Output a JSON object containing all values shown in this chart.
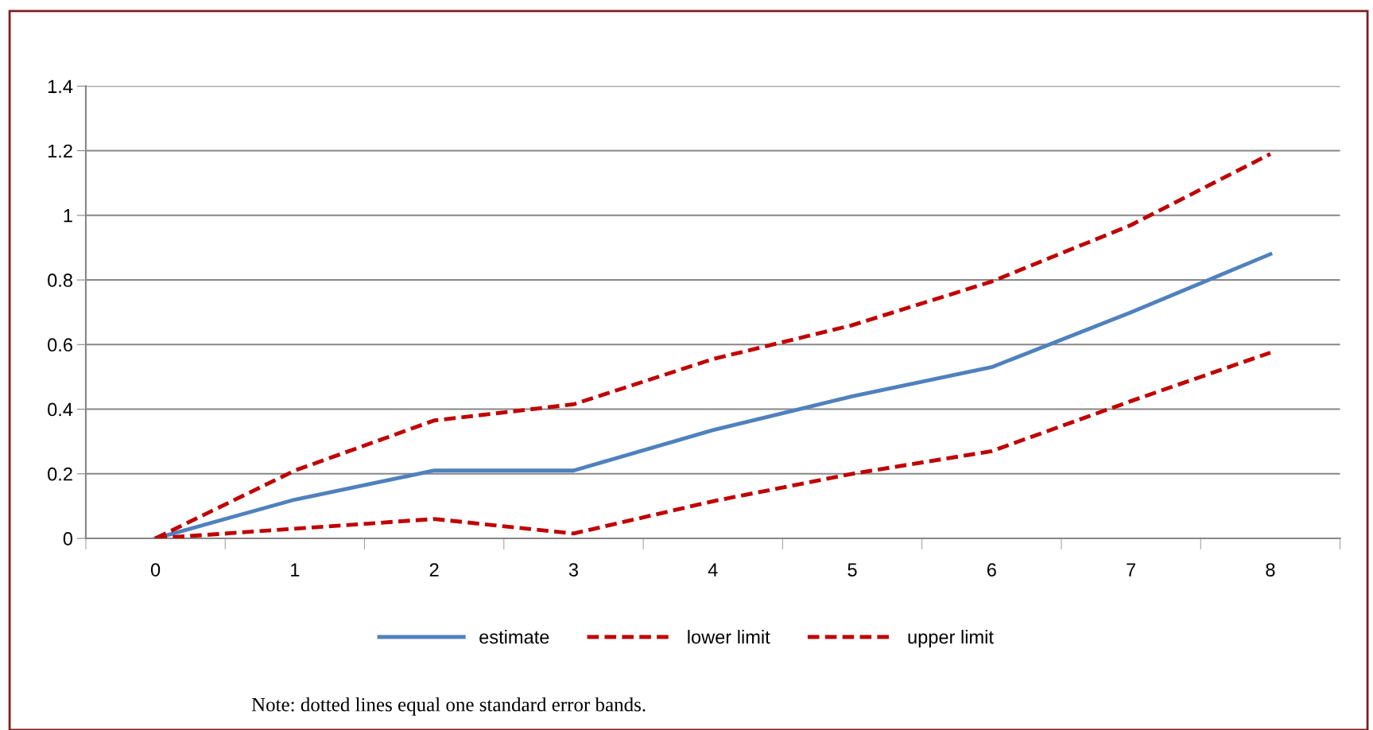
{
  "chart_data": {
    "type": "line",
    "categories": [
      "0",
      "1",
      "2",
      "3",
      "4",
      "5",
      "6",
      "7",
      "8"
    ],
    "series": [
      {
        "name": "estimate",
        "color": "#4f81bd",
        "line_style": "solid",
        "values": [
          0,
          0.12,
          0.21,
          0.21,
          0.335,
          0.44,
          0.53,
          0.7,
          0.88
        ]
      },
      {
        "name": "lower limit",
        "color": "#c00000",
        "line_style": "dashed",
        "values": [
          0,
          0.03,
          0.06,
          0.015,
          0.115,
          0.2,
          0.27,
          0.425,
          0.575
        ]
      },
      {
        "name": "upper limit",
        "color": "#c00000",
        "line_style": "dashed",
        "values": [
          0,
          0.21,
          0.365,
          0.415,
          0.555,
          0.66,
          0.795,
          0.97,
          1.19
        ]
      }
    ],
    "ylim": [
      0,
      1.4
    ],
    "yticks": [
      0,
      0.2,
      0.4,
      0.6,
      0.8,
      {
        "value": 1,
        "label": "1"
      },
      1.2,
      1.4
    ],
    "grid": "y",
    "legend": "bottom",
    "marker": "none",
    "annotations": [
      "Note: dotted lines equal one standard error bands."
    ]
  }
}
